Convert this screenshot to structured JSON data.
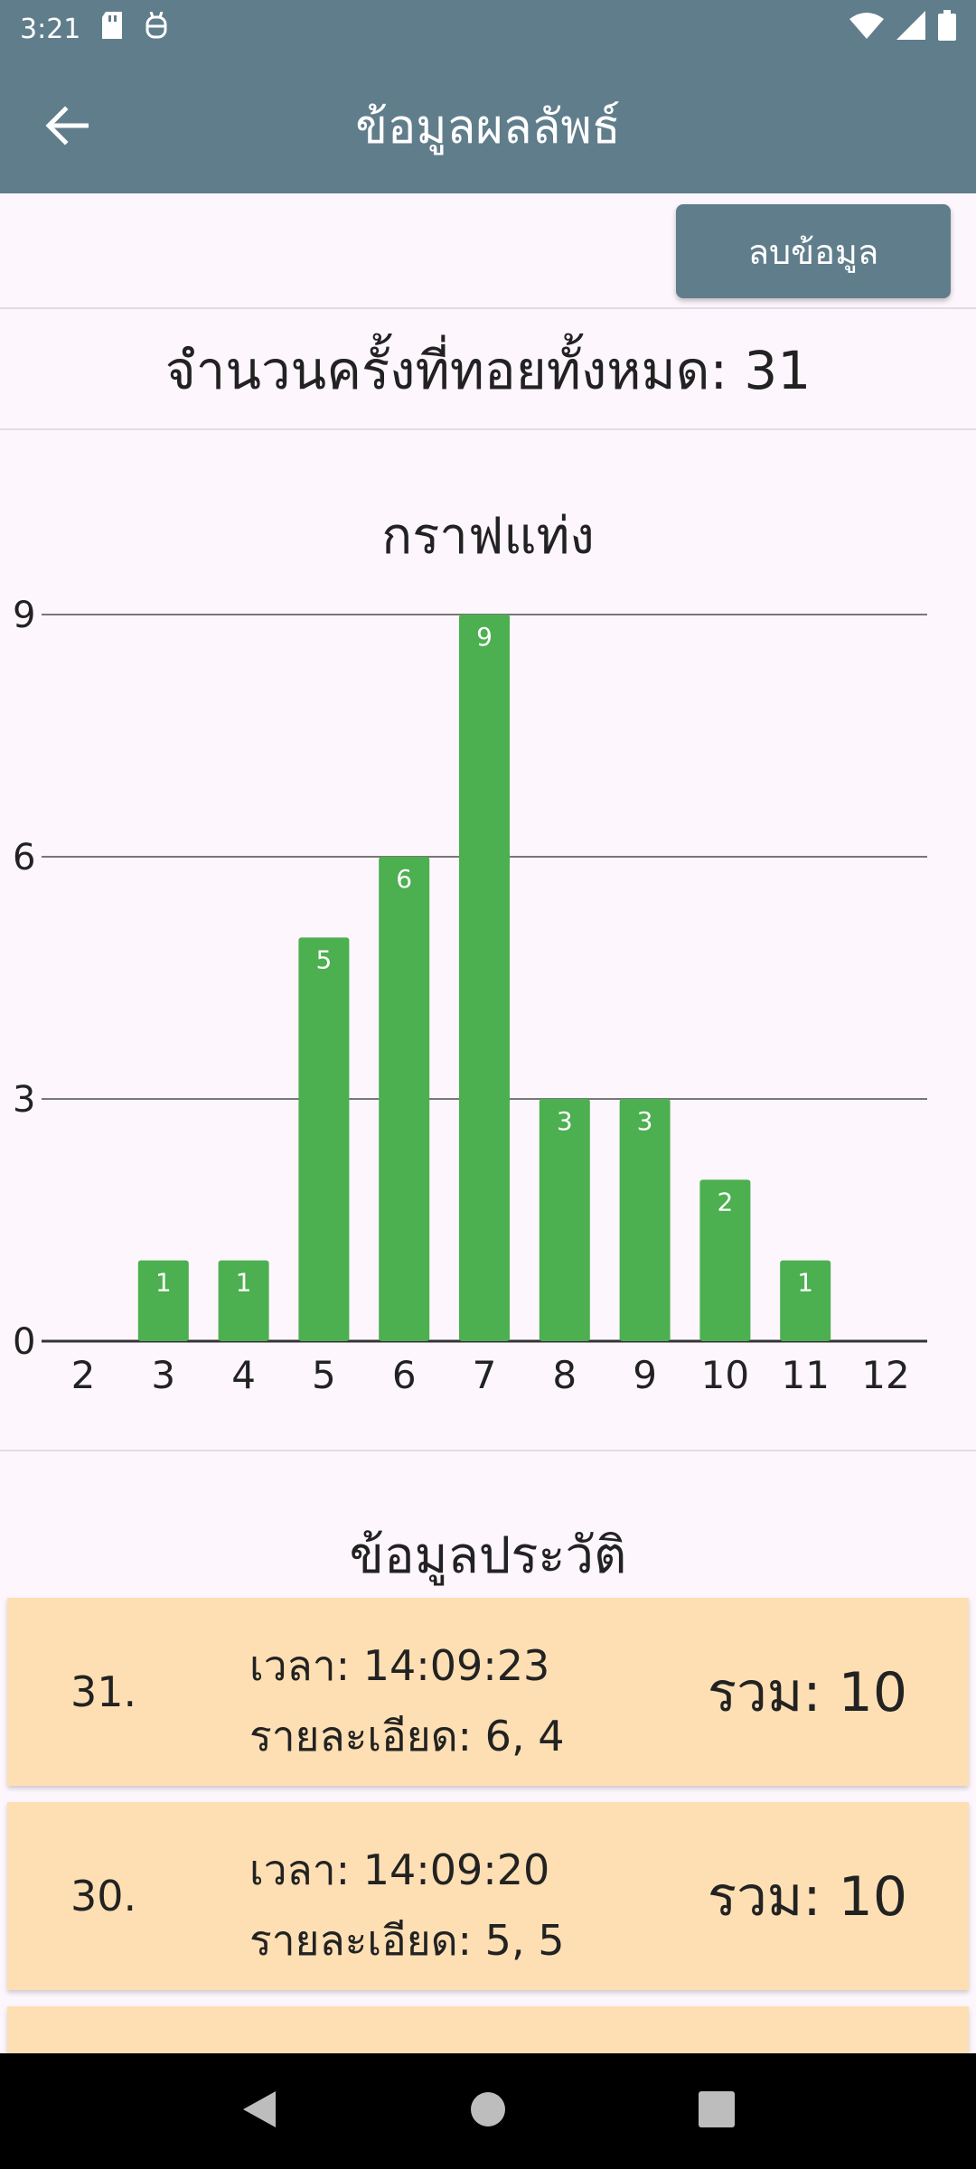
{
  "status_bar": {
    "time": "3:21",
    "icons": [
      "sd-card-icon",
      "usb-debug-icon",
      "wifi-icon",
      "signal-icon",
      "battery-icon"
    ]
  },
  "app_bar": {
    "title": "ข้อมูลผลลัพธ์",
    "back_icon": "arrow-left-icon"
  },
  "actions": {
    "clear_label": "ลบข้อมูล"
  },
  "summary": {
    "total_text": "จำนวนครั้งที่ทอยทั้งหมด: 31"
  },
  "chart_data": {
    "type": "bar",
    "title": "กราฟแท่ง",
    "categories": [
      "2",
      "3",
      "4",
      "5",
      "6",
      "7",
      "8",
      "9",
      "10",
      "11",
      "12"
    ],
    "values": [
      0,
      1,
      1,
      5,
      6,
      9,
      3,
      3,
      2,
      1,
      0
    ],
    "ylim": [
      0,
      9
    ],
    "yticks": [
      0,
      3,
      6,
      9
    ],
    "grid": true,
    "bar_color": "#4caf50",
    "xlabel": "",
    "ylabel": ""
  },
  "history": {
    "title": "ข้อมูลประวัติ",
    "items": [
      {
        "index": "31.",
        "time": "เวลา: 14:09:23",
        "detail": "รายละเอียด: 6, 4",
        "sum": "รวม: 10"
      },
      {
        "index": "30.",
        "time": "เวลา: 14:09:20",
        "detail": "รายละเอียด: 5, 5",
        "sum": "รวม: 10"
      },
      {
        "index": "",
        "time": "",
        "detail": "",
        "sum": ""
      }
    ]
  },
  "colors": {
    "app_bar": "#607d8b",
    "background": "#fdf6fd",
    "card": "#fddfb3",
    "bar": "#4caf50"
  }
}
